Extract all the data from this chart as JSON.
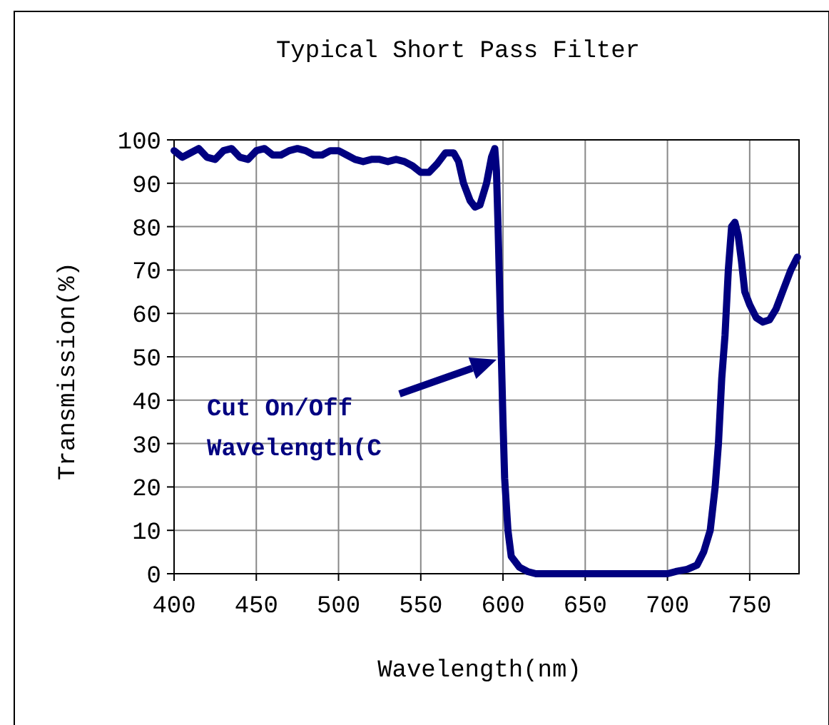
{
  "chart_data": {
    "type": "line",
    "title": "Typical Short Pass Filter",
    "xlabel": "Wavelength(nm)",
    "ylabel": "Transmission(%)",
    "x": [
      400,
      405,
      410,
      415,
      420,
      425,
      430,
      435,
      440,
      445,
      450,
      455,
      460,
      465,
      470,
      475,
      480,
      485,
      490,
      495,
      500,
      505,
      510,
      515,
      520,
      525,
      530,
      535,
      540,
      545,
      550,
      555,
      560,
      565,
      570,
      573,
      576,
      580,
      583,
      586,
      590,
      593,
      595,
      596,
      597,
      598,
      599,
      600,
      601,
      603,
      605,
      610,
      615,
      620,
      700,
      705,
      712,
      718,
      722,
      726,
      729,
      731,
      733,
      735,
      737,
      739,
      741,
      743,
      745,
      747,
      750,
      754,
      758,
      762,
      766,
      770,
      775,
      779
    ],
    "series": [
      {
        "color": "#000080",
        "values": [
          97.5,
          96,
          97,
          98,
          96,
          95.5,
          97.5,
          98,
          96,
          95.5,
          97.5,
          98,
          96.5,
          96.5,
          97.5,
          98,
          97.5,
          96.5,
          96.5,
          97.5,
          97.5,
          96.5,
          95.5,
          95,
          95.5,
          95.5,
          95,
          95.5,
          95,
          94,
          92.5,
          92.5,
          94.5,
          97,
          97,
          95,
          90,
          86,
          84.5,
          85,
          90,
          96,
          98,
          93,
          80,
          65,
          50,
          35,
          22,
          10,
          4,
          1.5,
          0.5,
          0,
          0,
          0.5,
          1,
          2,
          5,
          10,
          20,
          30,
          45,
          55,
          70,
          80,
          81,
          78,
          72,
          65,
          62,
          59,
          58,
          58.5,
          61,
          65,
          70,
          73
        ]
      }
    ],
    "xlim": [
      400,
      780
    ],
    "xticks": [
      400,
      450,
      500,
      550,
      600,
      650,
      700,
      750
    ],
    "ylim": [
      0,
      100
    ],
    "yticks": [
      0,
      10,
      20,
      30,
      40,
      50,
      60,
      70,
      80,
      90,
      100
    ],
    "grid": true,
    "marker": "none",
    "line_style": "solid",
    "annotations": [
      "Cut On/Off\nWavelength(C"
    ]
  }
}
